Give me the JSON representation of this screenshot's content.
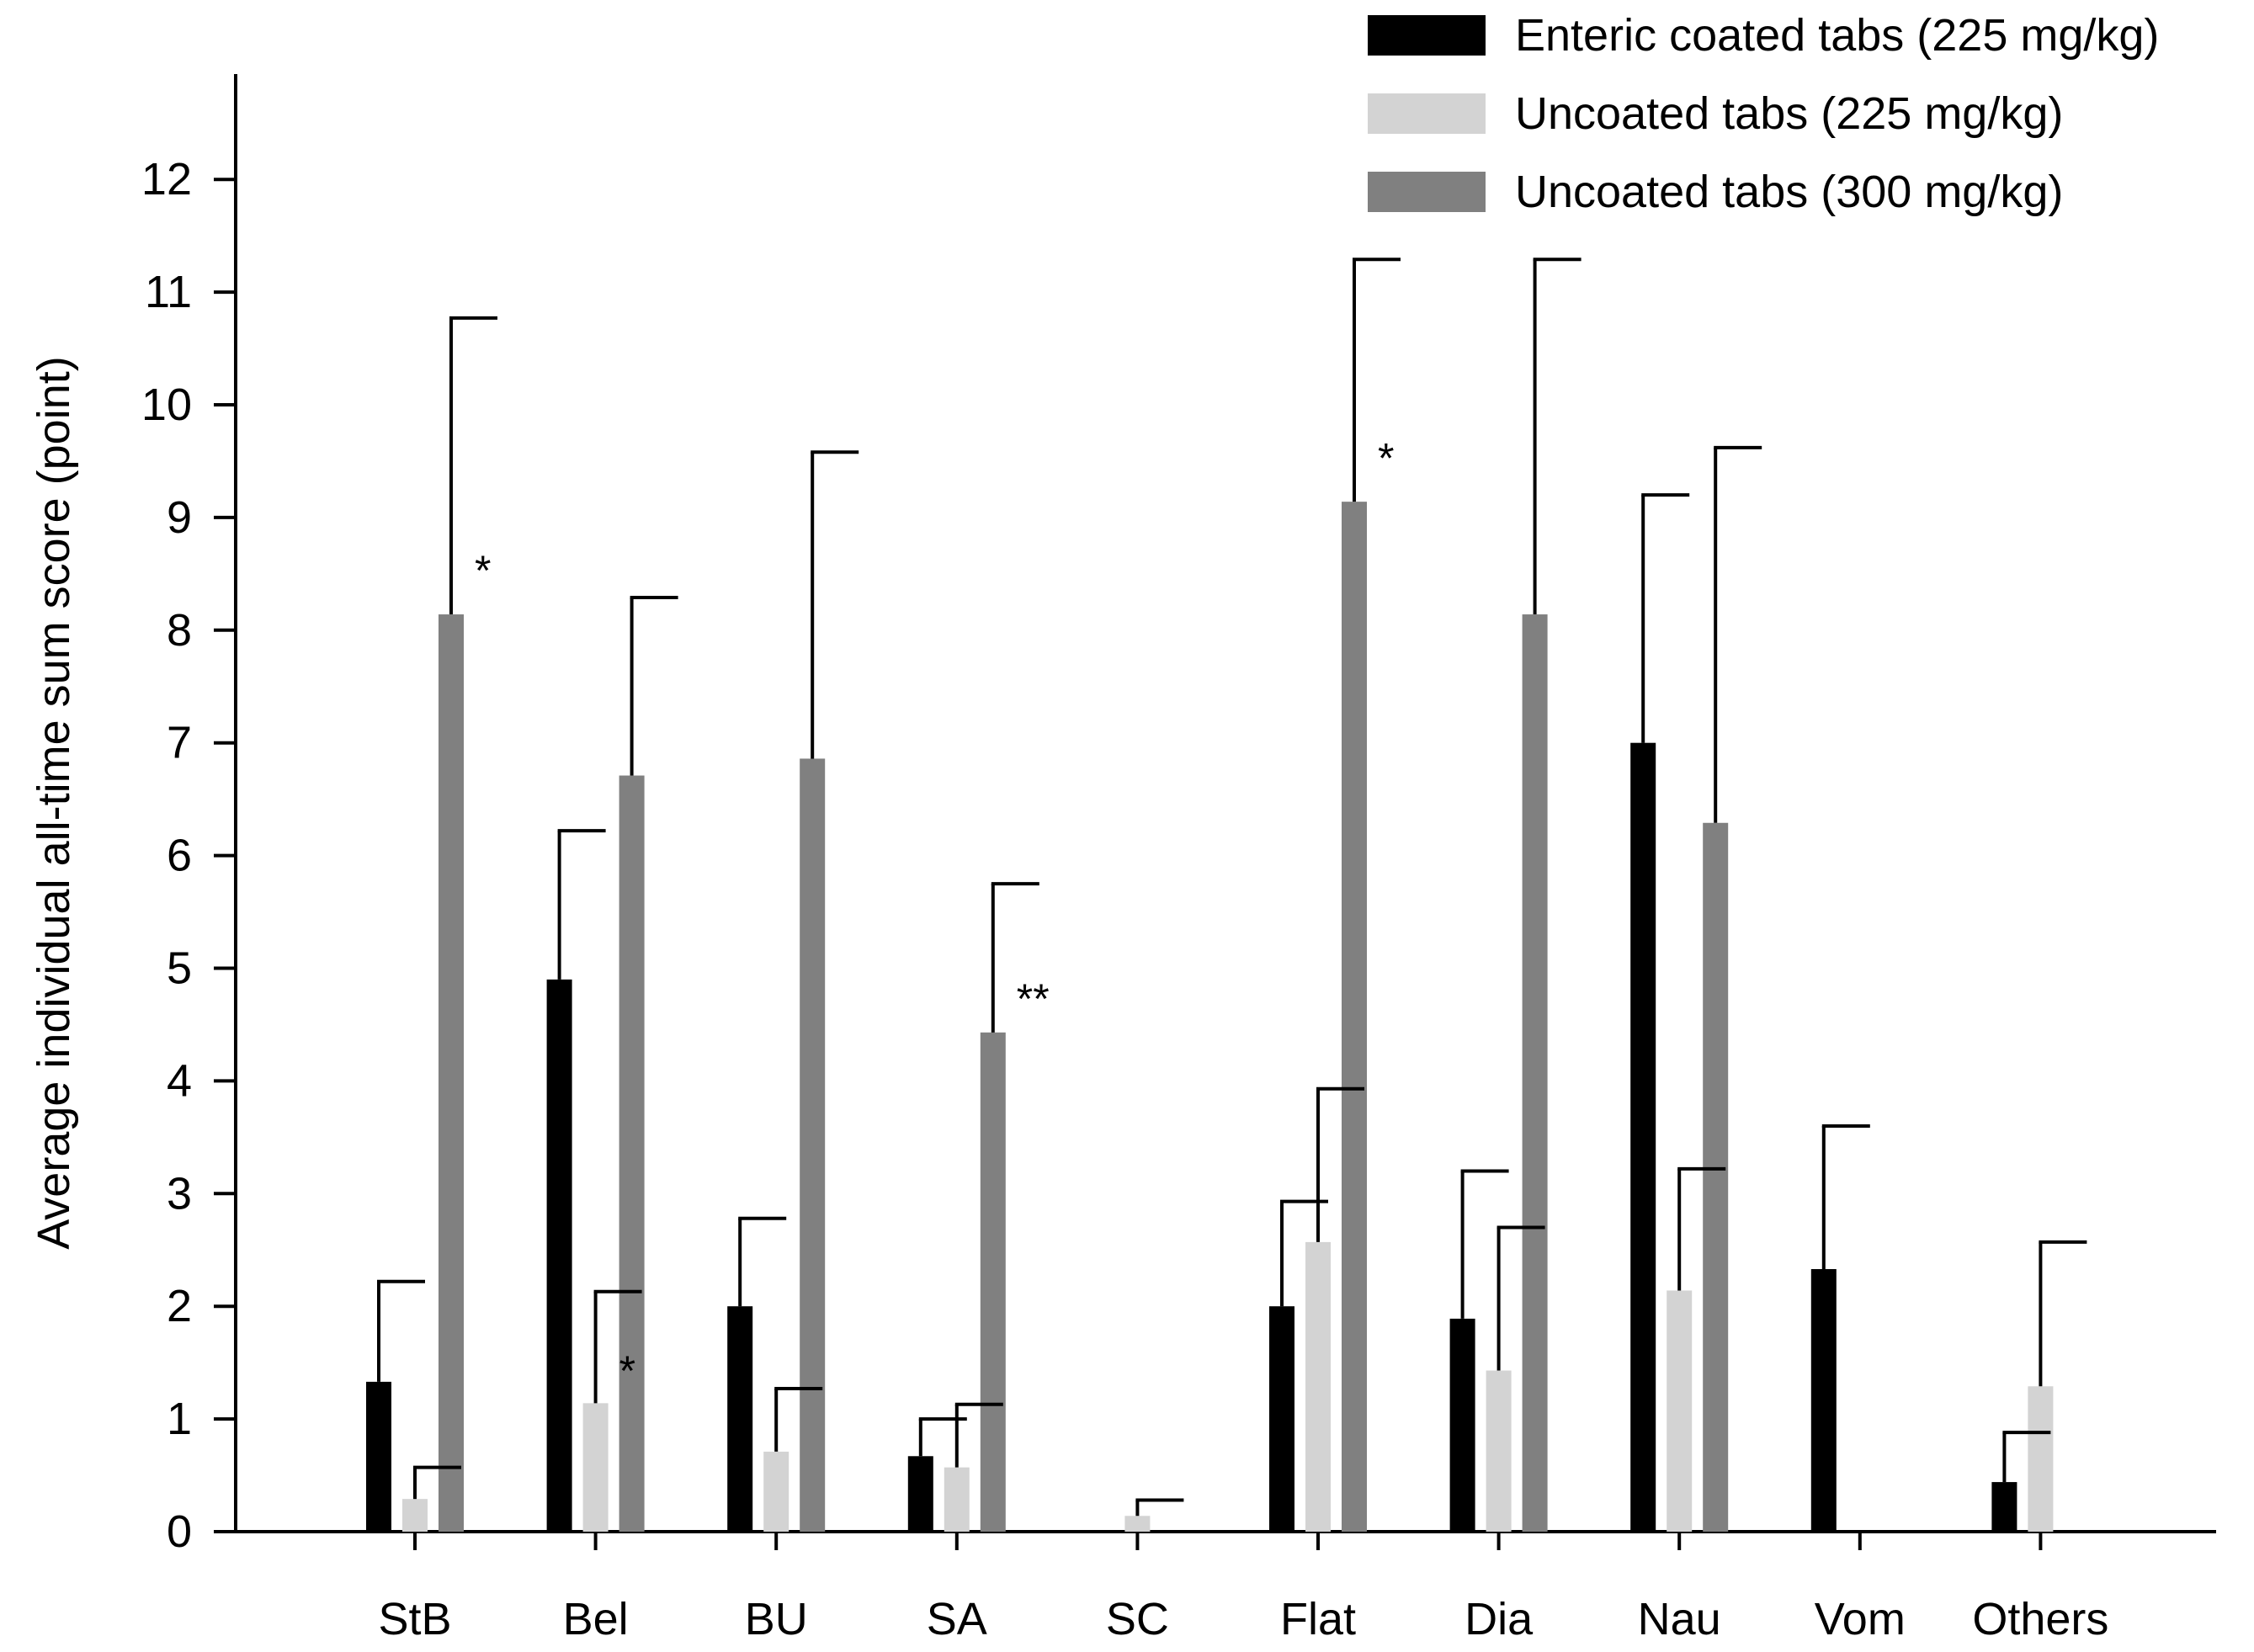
{
  "chart_data": {
    "type": "bar",
    "title": "",
    "xlabel": "",
    "ylabel": "Average individual all-time sum score (point)",
    "ylim": [
      0,
      12.8
    ],
    "yticks": [
      "0",
      "1",
      "2",
      "3",
      "4",
      "5",
      "6",
      "7",
      "8",
      "9",
      "10",
      "11",
      "12"
    ],
    "grid": false,
    "legend_position": "top-right",
    "categories": [
      "StB",
      "Bel",
      "BU",
      "SA",
      "SC",
      "Flat",
      "Dia",
      "Nau",
      "Vom",
      "Others"
    ],
    "series": [
      {
        "name": "Enteric coated tabs (225 mg/kg)",
        "color": "#000000",
        "values": [
          1.33,
          4.9,
          2.0,
          0.67,
          0,
          2.0,
          1.89,
          7.0,
          2.33,
          0.44
        ],
        "error_upper": [
          2.22,
          6.22,
          2.78,
          1.0,
          null,
          2.93,
          3.2,
          9.2,
          3.6,
          0.88
        ]
      },
      {
        "name": "Uncoated tabs (225 mg/kg)",
        "color": "#d3d3d3",
        "values": [
          0.29,
          1.14,
          0.71,
          0.57,
          0.14,
          2.57,
          1.43,
          2.14,
          0,
          1.29
        ],
        "error_upper": [
          0.57,
          2.13,
          1.27,
          1.13,
          0.28,
          3.93,
          2.7,
          3.22,
          null,
          2.57
        ]
      },
      {
        "name": "Uncoated tabs (300 mg/kg)",
        "color": "#808080",
        "values": [
          8.14,
          6.71,
          6.86,
          4.43,
          0,
          9.14,
          8.14,
          6.29,
          0,
          0
        ],
        "error_upper": [
          10.77,
          8.29,
          9.58,
          5.75,
          null,
          11.29,
          11.29,
          9.62,
          null,
          null
        ]
      }
    ],
    "annotations": [
      {
        "text": "*",
        "category": "StB",
        "series": 2,
        "value": 8.55
      },
      {
        "text": "*",
        "category": "Bel",
        "series": 1,
        "value": 1.45
      },
      {
        "text": "**",
        "category": "SA",
        "series": 2,
        "value": 4.75
      },
      {
        "text": "*",
        "category": "Flat",
        "series": 2,
        "value": 9.55
      }
    ]
  }
}
